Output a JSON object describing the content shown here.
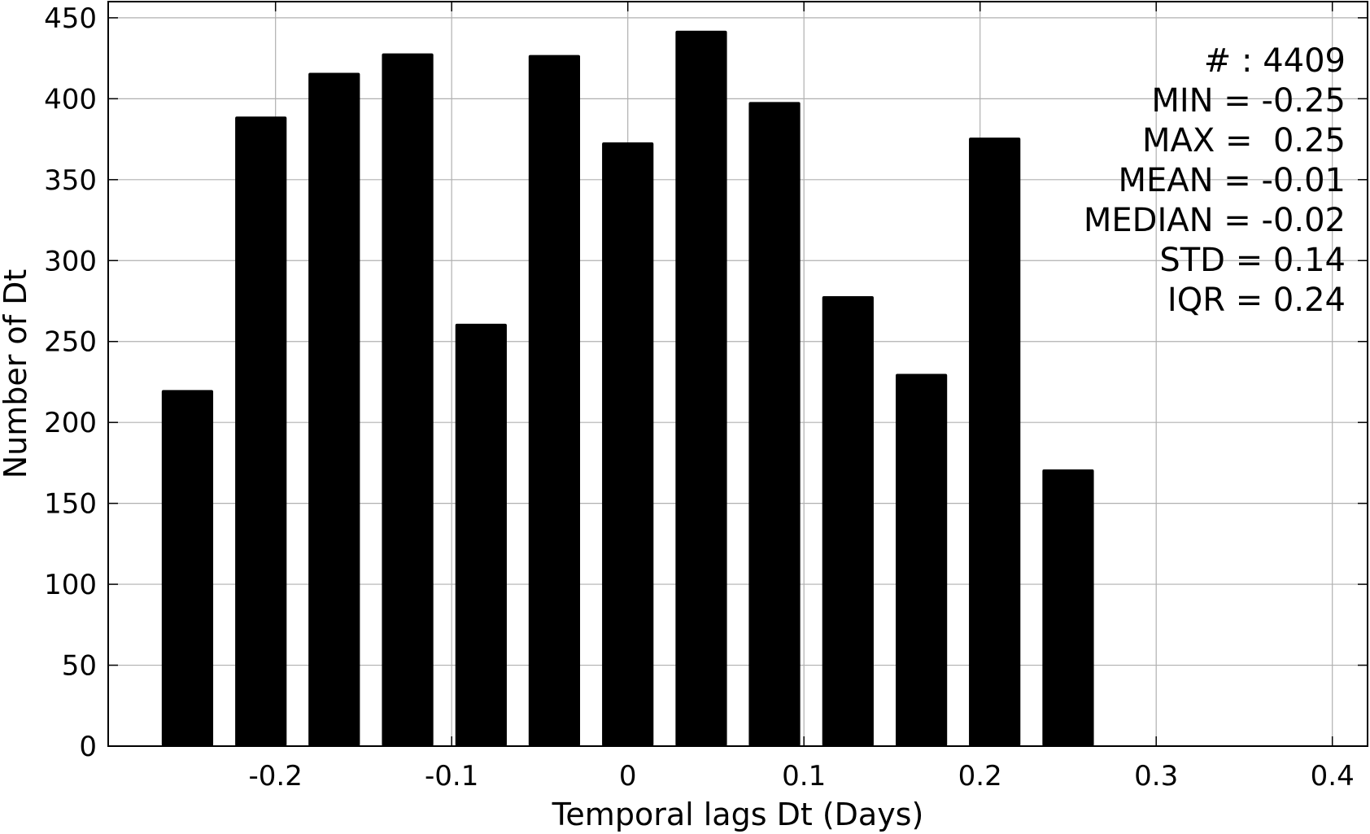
{
  "chart_data": {
    "type": "bar",
    "xlabel": "Temporal lags Dt (Days)",
    "ylabel": "Number of Dt",
    "xlim": [
      -0.295,
      0.42
    ],
    "ylim": [
      0,
      460
    ],
    "x_ticks": [
      -0.2,
      -0.1,
      0,
      0.1,
      0.2,
      0.3,
      0.4
    ],
    "x_tick_labels": [
      "-0.2",
      "-0.1",
      "0",
      "0.1",
      "0.2",
      "0.3",
      "0.4"
    ],
    "y_ticks": [
      0,
      50,
      100,
      150,
      200,
      250,
      300,
      350,
      400,
      450
    ],
    "y_tick_labels": [
      "0",
      "50",
      "100",
      "150",
      "200",
      "250",
      "300",
      "350",
      "400",
      "450"
    ],
    "grid": true,
    "bar_color": "#000000",
    "bar_width": 0.0292,
    "x": [
      -0.25,
      -0.2083,
      -0.1667,
      -0.125,
      -0.0833,
      -0.0417,
      0.0,
      0.0417,
      0.0833,
      0.125,
      0.1667,
      0.2083,
      0.25
    ],
    "values": [
      220,
      389,
      416,
      428,
      261,
      427,
      373,
      442,
      398,
      278,
      230,
      376,
      171
    ],
    "annotations": [
      "# : 4409",
      "MIN = -0.25",
      "MAX =  0.25",
      "MEAN = -0.01",
      "MEDIAN = -0.02",
      "STD = 0.14",
      "IQR = 0.24"
    ]
  }
}
